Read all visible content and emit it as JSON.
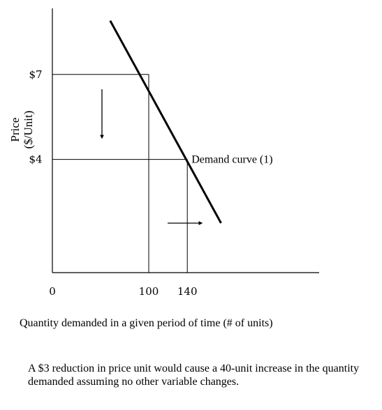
{
  "chart_data": {
    "type": "line",
    "xlabel": "Quantity demanded in a given period of time (# of units)",
    "ylabel_line1": "Price",
    "ylabel_line2": "($/Unit)",
    "x_ticks": [
      {
        "value": 0,
        "label": "0"
      },
      {
        "value": 100,
        "label": "100"
      },
      {
        "value": 140,
        "label": "140"
      }
    ],
    "y_ticks": [
      {
        "value": 7,
        "label": "$7"
      },
      {
        "value": 4,
        "label": "$4"
      }
    ],
    "xlim": [
      0,
      240
    ],
    "ylim": [
      0,
      9.55
    ],
    "series": [
      {
        "name": "Demand curve (1)",
        "points": [
          [
            60,
            8.9
          ],
          [
            175,
            1.75
          ]
        ]
      }
    ],
    "reference_points": [
      {
        "x": 100,
        "y": 7
      },
      {
        "x": 140,
        "y": 4
      }
    ],
    "annotations": {
      "curve_label": "Demand curve (1)",
      "arrows": [
        {
          "direction": "down",
          "meaning": "price decrease"
        },
        {
          "direction": "right",
          "meaning": "quantity increase"
        }
      ]
    },
    "grid": false,
    "legend": "none"
  },
  "caption": "A $3 reduction in price unit would cause a 40-unit increase in the quantity demanded assuming no other variable changes."
}
